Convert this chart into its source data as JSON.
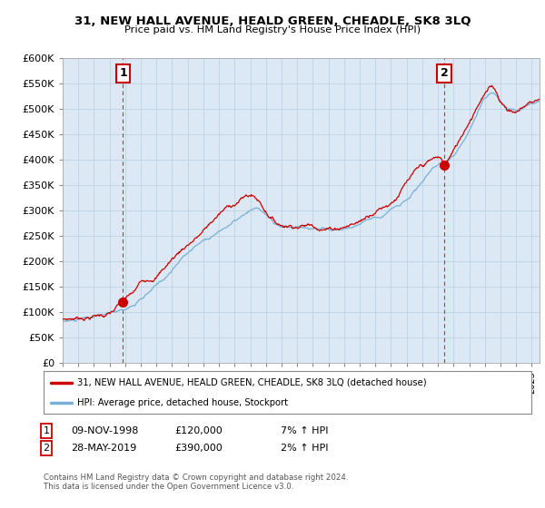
{
  "title": "31, NEW HALL AVENUE, HEALD GREEN, CHEADLE, SK8 3LQ",
  "subtitle": "Price paid vs. HM Land Registry's House Price Index (HPI)",
  "ylabel_ticks": [
    0,
    50000,
    100000,
    150000,
    200000,
    250000,
    300000,
    350000,
    400000,
    450000,
    500000,
    550000,
    600000
  ],
  "ylim": [
    0,
    600000
  ],
  "xlim_start": 1995.0,
  "xlim_end": 2025.5,
  "point1_x": 1998.86,
  "point1_y": 120000,
  "point1_label": "1",
  "point2_x": 2019.41,
  "point2_y": 390000,
  "point2_label": "2",
  "legend_line1": "31, NEW HALL AVENUE, HEALD GREEN, CHEADLE, SK8 3LQ (detached house)",
  "legend_line2": "HPI: Average price, detached house, Stockport",
  "table_row1": [
    "1",
    "09-NOV-1998",
    "£120,000",
    "7% ↑ HPI"
  ],
  "table_row2": [
    "2",
    "28-MAY-2019",
    "£390,000",
    "2% ↑ HPI"
  ],
  "footer": "Contains HM Land Registry data © Crown copyright and database right 2024.\nThis data is licensed under the Open Government Licence v3.0.",
  "line_color_red": "#cc0000",
  "line_color_blue": "#7ab0d4",
  "chart_bg": "#dce9f5",
  "background_color": "#ffffff",
  "grid_color": "#b8cfe0"
}
